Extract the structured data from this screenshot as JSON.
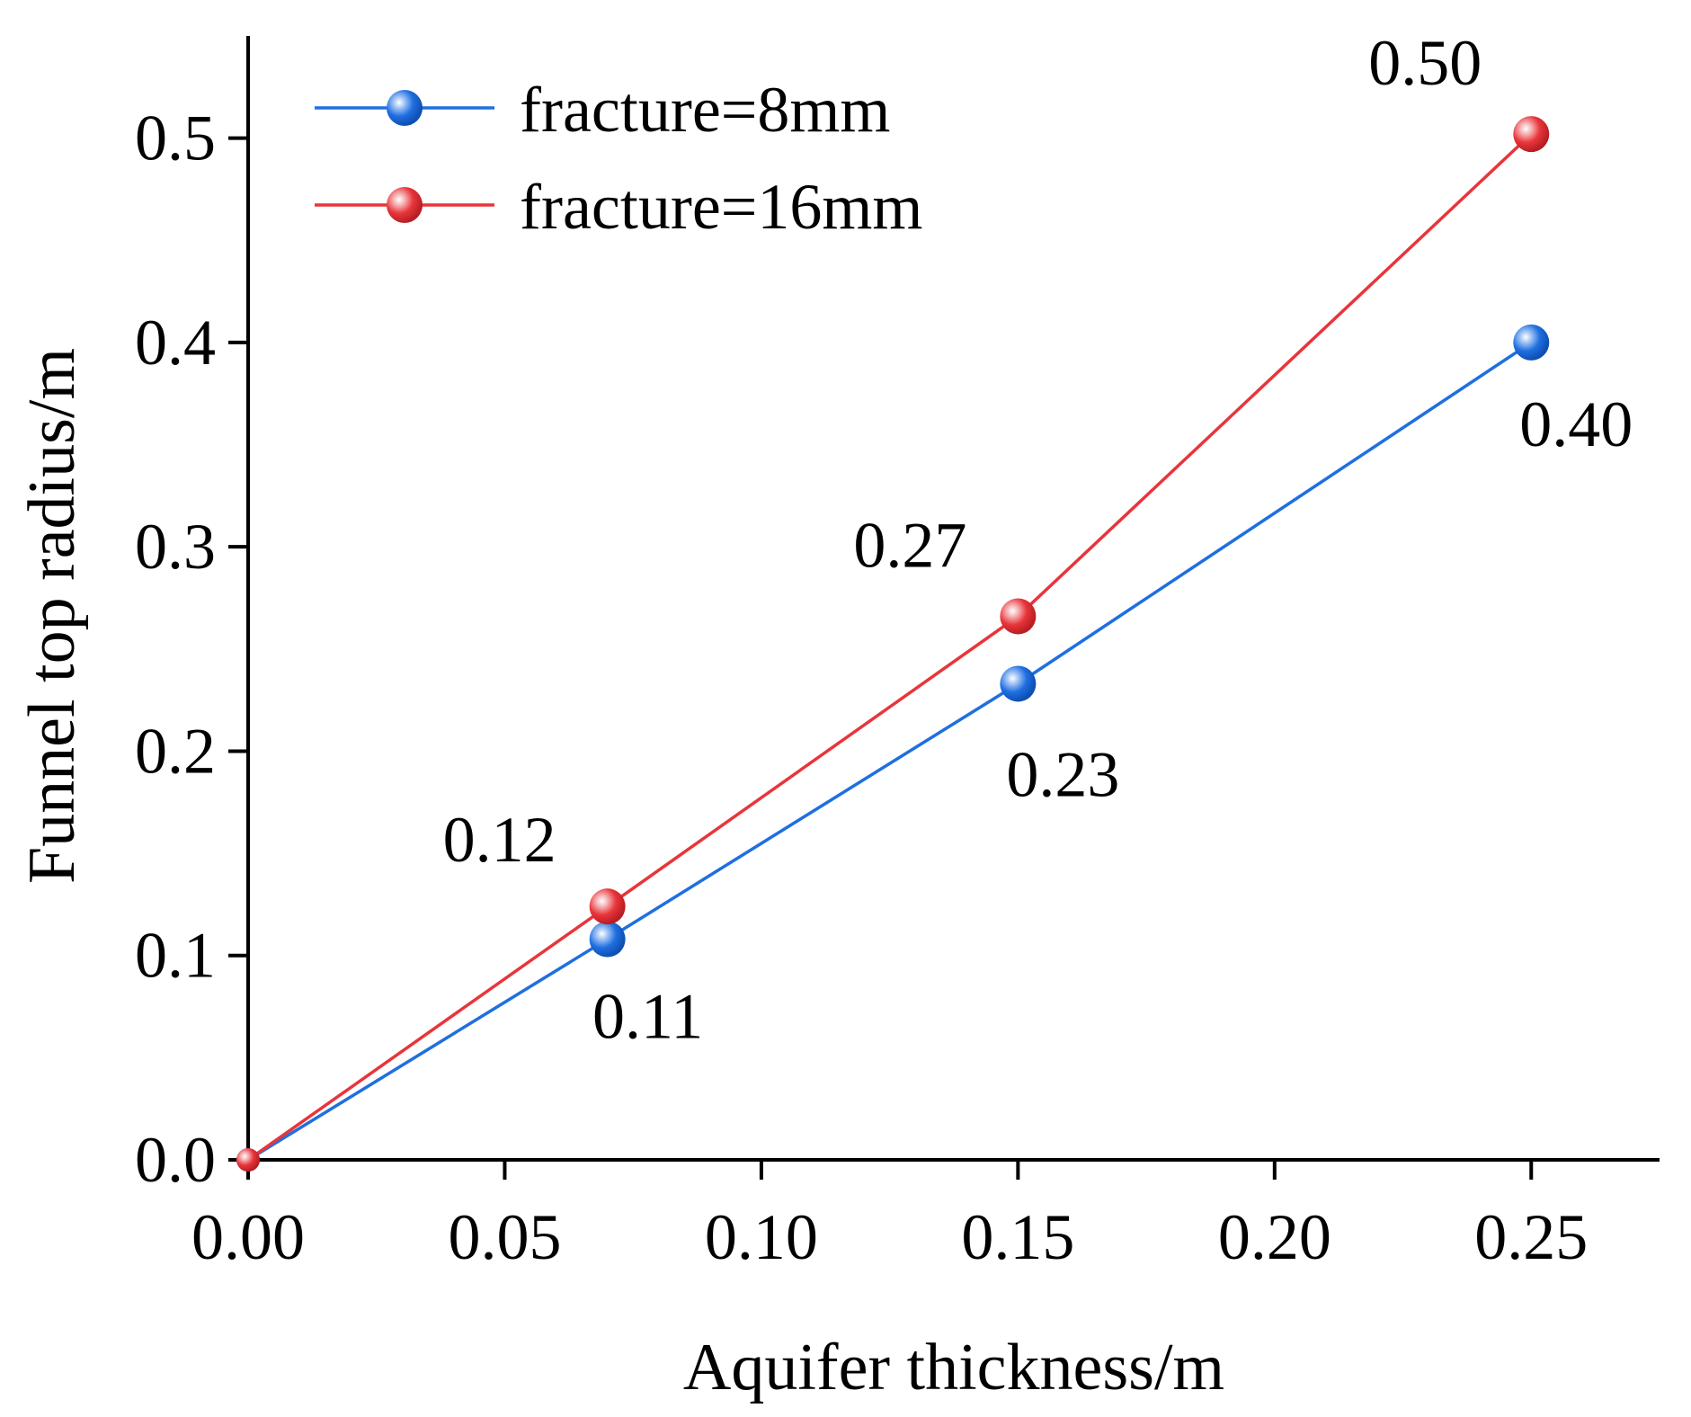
{
  "chart_data": {
    "type": "line",
    "title": "",
    "xlabel": "Aquifer thickness/m",
    "ylabel": "Funnel top radius/m",
    "xlim": [
      0,
      0.275
    ],
    "ylim": [
      0,
      0.55
    ],
    "xticks": [
      0.0,
      0.05,
      0.1,
      0.15,
      0.2,
      0.25
    ],
    "xtick_labels": [
      "0.00",
      "0.05",
      "0.10",
      "0.15",
      "0.20",
      "0.25"
    ],
    "yticks": [
      0.0,
      0.1,
      0.2,
      0.3,
      0.4,
      0.5
    ],
    "ytick_labels": [
      "0.0",
      "0.1",
      "0.2",
      "0.3",
      "0.4",
      "0.5"
    ],
    "grid": false,
    "legend_position": "top-left",
    "series": [
      {
        "name": "fracture=8mm",
        "color": "#1f6fe0",
        "x": [
          0,
          0.07,
          0.15,
          0.25
        ],
        "y": [
          0,
          0.108,
          0.233,
          0.4
        ],
        "labels": [
          "",
          "0.11",
          "0.23",
          "0.40"
        ],
        "label_side": "below"
      },
      {
        "name": "fracture=16mm",
        "color": "#e8353b",
        "x": [
          0,
          0.07,
          0.15,
          0.25
        ],
        "y": [
          0,
          0.124,
          0.266,
          0.502
        ],
        "labels": [
          "",
          "0.12",
          "0.27",
          "0.50"
        ],
        "label_side": "above"
      }
    ]
  }
}
